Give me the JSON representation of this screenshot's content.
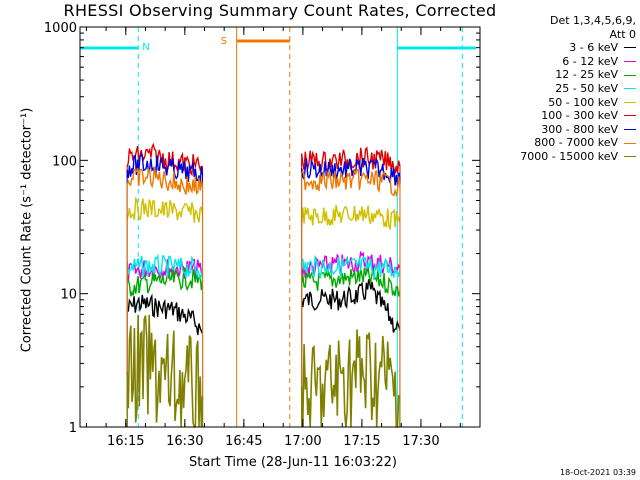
{
  "chart_data": {
    "type": "line",
    "title": "RHESSI Observing Summary Count Rates, Corrected",
    "xlabel": "Start Time (28-Jun-11 16:03:22)",
    "ylabel": "Corrected Count Rate (s⁻¹ detector⁻¹)",
    "y_scale": "log",
    "ylim": [
      1,
      1000
    ],
    "x_range_minutes": [
      "16:03:22",
      "17:45:00"
    ],
    "x_ticks": [
      "16:15",
      "16:30",
      "16:45",
      "17:00",
      "17:15",
      "17:30"
    ],
    "y_ticks": [
      "1",
      "10",
      "100",
      "1000"
    ],
    "legend_header": [
      "Det 1,3,4,5,6,9,",
      "Att 0"
    ],
    "series": [
      {
        "name": "3 - 6 keV",
        "color": "#000000",
        "segments": [
          {
            "x": [
              "16:15:20",
              "16:18",
              "16:21",
              "16:24",
              "16:27",
              "16:30",
              "16:33",
              "16:34:30"
            ],
            "y": [
              7.5,
              8.5,
              8.2,
              7.8,
              7.6,
              6.8,
              6.0,
              5.0
            ]
          },
          {
            "x": [
              "16:59:40",
              "17:03",
              "17:06",
              "17:09",
              "17:12",
              "17:15",
              "17:17",
              "17:19",
              "17:21",
              "17:23",
              "17:24:40"
            ],
            "y": [
              9.0,
              9.0,
              9.1,
              9.0,
              9.3,
              10.0,
              11.0,
              9.0,
              7.5,
              6.0,
              5.3
            ]
          }
        ]
      },
      {
        "name": "6 - 12 keV",
        "color": "#dd00dd",
        "segments": [
          {
            "x": [
              "16:15:20",
              "16:20",
              "16:25",
              "16:30",
              "16:34:30"
            ],
            "y": [
              14,
              15.5,
              15.5,
              15.5,
              15
            ]
          },
          {
            "x": [
              "16:59:40",
              "17:05",
              "17:10",
              "17:15",
              "17:20",
              "17:24:40"
            ],
            "y": [
              15,
              16,
              16.5,
              17.5,
              17,
              15.5
            ]
          }
        ]
      },
      {
        "name": "12 - 25 keV",
        "color": "#00aa00",
        "segments": [
          {
            "x": [
              "16:15:20",
              "16:20",
              "16:25",
              "16:30",
              "16:34:30"
            ],
            "y": [
              11,
              12,
              12.5,
              13,
              12.5
            ]
          },
          {
            "x": [
              "16:59:40",
              "17:05",
              "17:10",
              "17:15",
              "17:20",
              "17:24:40"
            ],
            "y": [
              12,
              12.5,
              13,
              13.5,
              12.5,
              10.5
            ]
          }
        ]
      },
      {
        "name": "25 - 50 keV",
        "color": "#00e8e8",
        "segments": [
          {
            "x": [
              "16:15:20",
              "16:20",
              "16:25",
              "16:30",
              "16:34:30"
            ],
            "y": [
              15.5,
              16,
              16,
              15.5,
              15.5
            ]
          },
          {
            "x": [
              "16:59:40",
              "17:05",
              "17:10",
              "17:15",
              "17:20",
              "17:24:40"
            ],
            "y": [
              16,
              16,
              16,
              16,
              15.5,
              15
            ]
          }
        ]
      },
      {
        "name": "50 - 100 keV",
        "color": "#d0c000",
        "segments": [
          {
            "x": [
              "16:15:20",
              "16:20",
              "16:25",
              "16:30",
              "16:34:30"
            ],
            "y": [
              42,
              44,
              42,
              41,
              39
            ]
          },
          {
            "x": [
              "16:59:40",
              "17:05",
              "17:10",
              "17:15",
              "17:20",
              "17:24:40"
            ],
            "y": [
              38,
              38,
              39,
              40,
              38,
              34
            ]
          }
        ]
      },
      {
        "name": "100 - 300 keV",
        "color": "#dd0000",
        "segments": [
          {
            "x": [
              "16:15:20",
              "16:18",
              "16:22",
              "16:26",
              "16:30",
              "16:34:30"
            ],
            "y": [
              105,
              108,
              110,
              100,
              95,
              90
            ]
          },
          {
            "x": [
              "16:59:40",
              "17:05",
              "17:10",
              "17:15",
              "17:20",
              "17:24:40"
            ],
            "y": [
              100,
              98,
              100,
              104,
              100,
              90
            ]
          }
        ]
      },
      {
        "name": "300 - 800 keV",
        "color": "#0000dd",
        "segments": [
          {
            "x": [
              "16:15:20",
              "16:18",
              "16:22",
              "16:26",
              "16:30",
              "16:34:30"
            ],
            "y": [
              88,
              92,
              95,
              88,
              82,
              78
            ]
          },
          {
            "x": [
              "16:59:40",
              "17:05",
              "17:10",
              "17:15",
              "17:20",
              "17:24:40"
            ],
            "y": [
              87,
              85,
              85,
              87,
              85,
              75
            ]
          }
        ]
      },
      {
        "name": "800 - 7000 keV",
        "color": "#ee7700",
        "segments": [
          {
            "x": [
              "16:15:20",
              "16:18",
              "16:22",
              "16:26",
              "16:30",
              "16:34:30"
            ],
            "y": [
              71,
              74,
              75,
              70,
              65,
              62
            ]
          },
          {
            "x": [
              "16:59:40",
              "17:05",
              "17:10",
              "17:15",
              "17:20",
              "17:24:40"
            ],
            "y": [
              72,
              70,
              70,
              72,
              70,
              63
            ]
          }
        ]
      },
      {
        "name": "7000 - 15000 keV",
        "color": "#808000",
        "segments": [
          {
            "x": [
              "16:15:20",
              "16:20",
              "16:25",
              "16:30",
              "16:34:30"
            ],
            "y": [
              2.5,
              2.8,
              2.2,
              2.0,
              1.7
            ]
          },
          {
            "x": [
              "16:59:40",
              "17:05",
              "17:10",
              "17:15",
              "17:20",
              "17:24:40"
            ],
            "y": [
              1.6,
              1.8,
              2.3,
              2.5,
              2.4,
              1.7
            ]
          }
        ]
      }
    ],
    "annotations": [
      {
        "text": "N",
        "color": "#00e8e8"
      },
      {
        "text": "S",
        "color": "#ee7700"
      }
    ]
  },
  "timestamp": "18-Oct-2021 03:39"
}
